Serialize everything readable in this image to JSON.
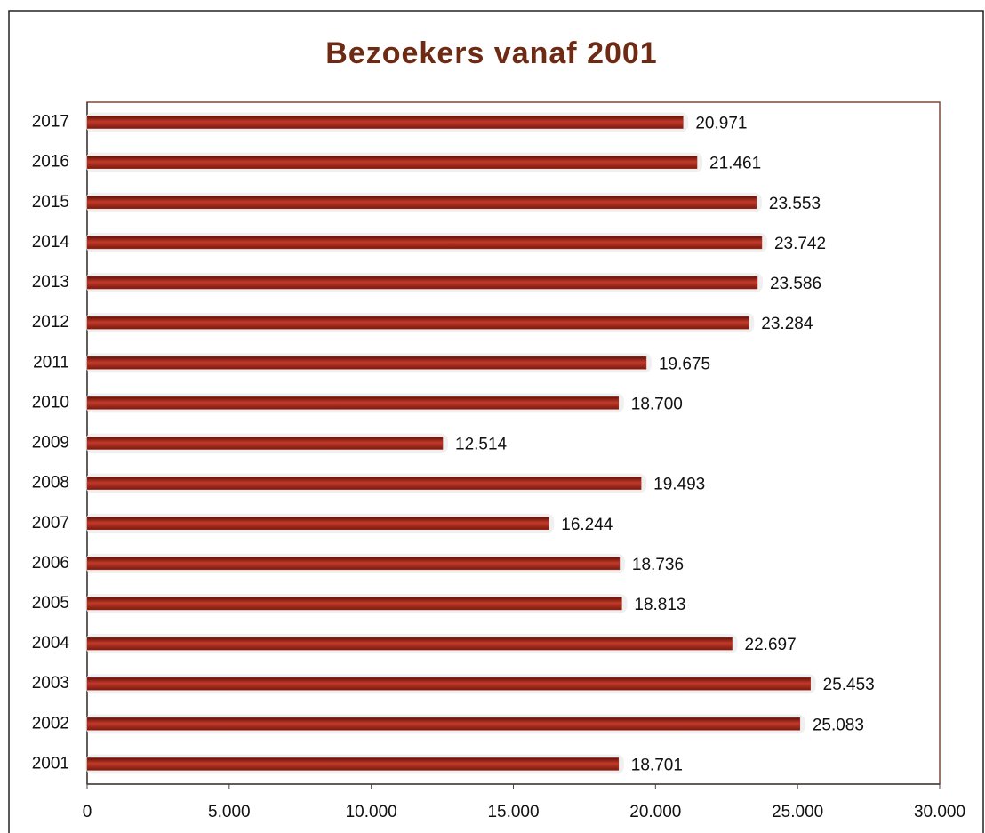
{
  "chart_data": {
    "type": "bar",
    "orientation": "horizontal",
    "title": "Bezoekers vanaf 2001",
    "categories": [
      "2001",
      "2002",
      "2003",
      "2004",
      "2005",
      "2006",
      "2007",
      "2008",
      "2009",
      "2010",
      "2011",
      "2012",
      "2013",
      "2014",
      "2015",
      "2016",
      "2017"
    ],
    "values": [
      18701,
      25083,
      25453,
      22697,
      18813,
      18736,
      16244,
      19493,
      12514,
      18700,
      19675,
      23284,
      23586,
      23742,
      23553,
      21461,
      20971
    ],
    "value_labels": [
      "18.701",
      "25.083",
      "25.453",
      "22.697",
      "18.813",
      "18.736",
      "16.244",
      "19.493",
      "12.514",
      "18.700",
      "19.675",
      "23.284",
      "23.586",
      "23.742",
      "23.553",
      "21.461",
      "20.971"
    ],
    "color": "#a8281c",
    "xlim": [
      0,
      30000
    ],
    "xticks": [
      0,
      {
        "value": 5000,
        "label": "5.000"
      },
      {
        "value": 10000,
        "label": "10.000"
      },
      {
        "value": 15000,
        "label": "15.000"
      },
      {
        "value": 20000,
        "label": "20.000"
      },
      {
        "value": 25000,
        "label": "25.000"
      },
      {
        "value": 30000,
        "label": "30.000"
      }
    ]
  }
}
